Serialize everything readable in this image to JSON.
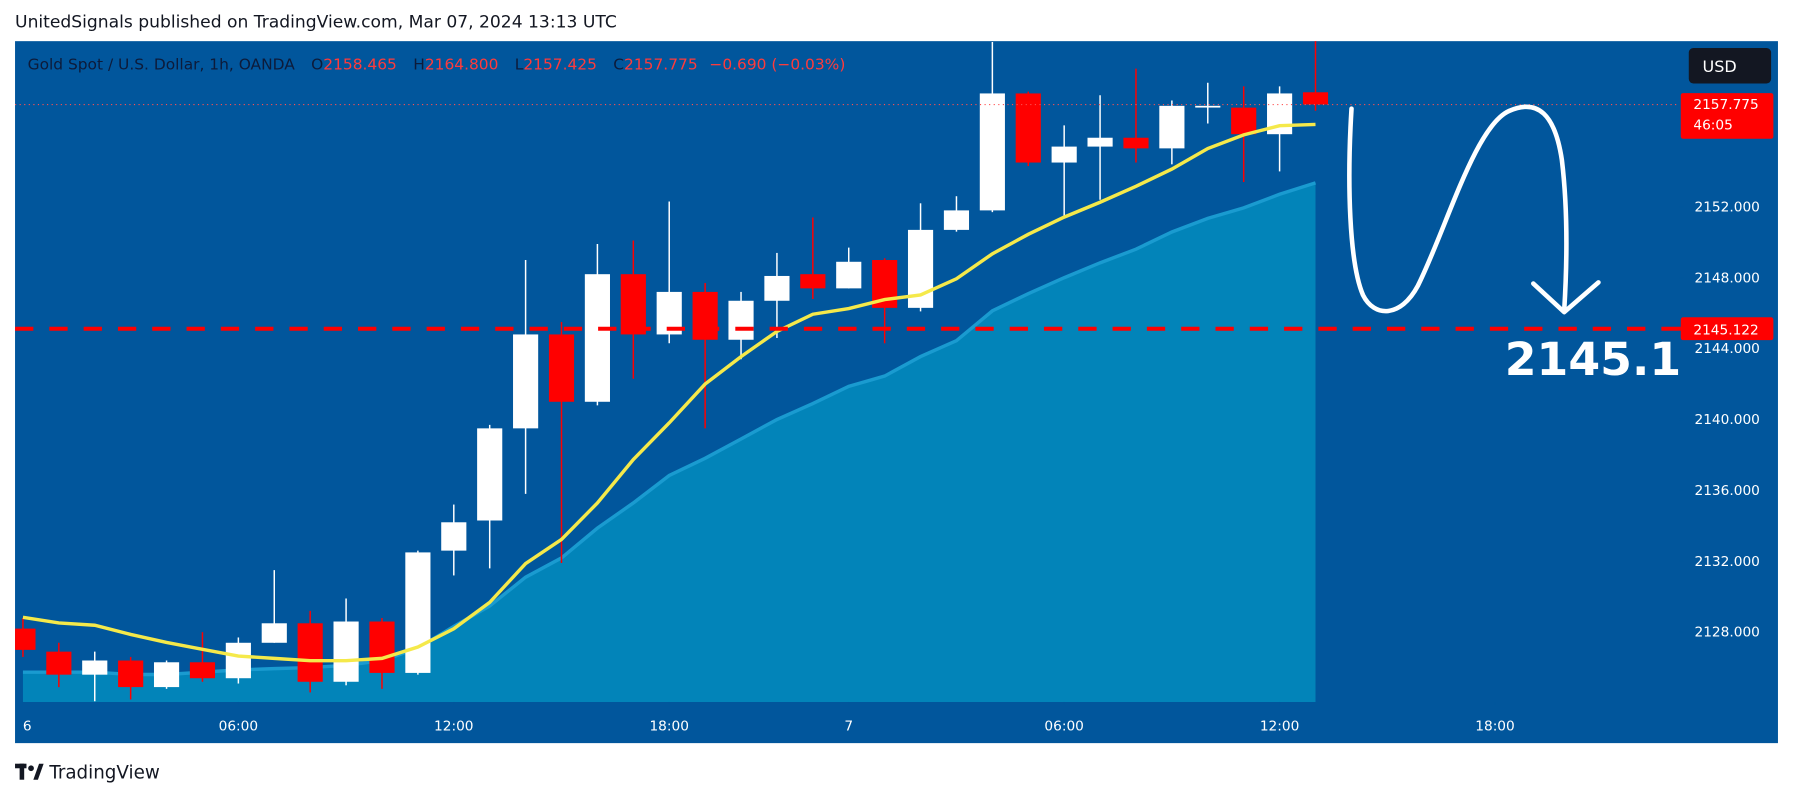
{
  "published": "UnitedSignals published on TradingView.com, Mar 07, 2024 13:13 UTC",
  "footer": "TradingView",
  "chart_data": {
    "type": "candlestick",
    "header": {
      "symbol": "Gold Spot / U.S. Dollar, 1h, OANDA",
      "o_label": "O",
      "open": "2158.465",
      "h_label": "H",
      "high": "2164.800",
      "l_label": "L",
      "low": "2157.425",
      "c_label": "C",
      "close": "2157.775",
      "change": "−0.690 (−0.03%)"
    },
    "currency": "USD",
    "countdown": "46:05",
    "annotation": "2145.1",
    "up_color": "#ffffff",
    "down_color": "#ff0000",
    "open": [
      2128.2,
      2126.9,
      2125.6,
      2126.4,
      2124.9,
      2126.3,
      2125.4,
      2127.4,
      2128.5,
      2125.2,
      2128.6,
      2125.7,
      2132.6,
      2134.3,
      2139.5,
      2144.8,
      2141.0,
      2148.2,
      2144.8,
      2147.2,
      2144.5,
      2146.7,
      2148.2,
      2147.4,
      2149.0,
      2146.3,
      2150.7,
      2151.8,
      2158.4,
      2154.5,
      2155.4,
      2155.9,
      2155.3,
      2157.7,
      2157.6,
      2156.1,
      2158.465
    ],
    "high": [
      2128.8,
      2127.4,
      2126.9,
      2126.6,
      2126.4,
      2128.0,
      2127.7,
      2131.5,
      2129.2,
      2129.9,
      2128.8,
      2132.6,
      2135.2,
      2139.7,
      2149.0,
      2145.5,
      2149.9,
      2150.1,
      2152.3,
      2147.7,
      2147.2,
      2149.4,
      2151.4,
      2149.7,
      2149.1,
      2152.2,
      2152.6,
      2161.3,
      2158.5,
      2156.6,
      2158.3,
      2159.8,
      2158.0,
      2159.0,
      2158.8,
      2158.8,
      2164.8
    ],
    "low": [
      2126.6,
      2124.9,
      2124.1,
      2124.2,
      2124.8,
      2125.2,
      2125.1,
      2127.4,
      2124.6,
      2125.0,
      2124.8,
      2125.6,
      2131.2,
      2131.6,
      2135.8,
      2131.9,
      2140.8,
      2142.3,
      2144.3,
      2139.5,
      2143.4,
      2144.6,
      2146.8,
      2147.4,
      2144.3,
      2146.1,
      2150.6,
      2151.7,
      2154.3,
      2151.5,
      2152.4,
      2154.5,
      2154.4,
      2156.7,
      2153.4,
      2154.0,
      2157.425
    ],
    "close": [
      2127.0,
      2125.6,
      2126.4,
      2124.9,
      2126.3,
      2125.4,
      2127.4,
      2128.5,
      2125.2,
      2128.6,
      2125.7,
      2132.5,
      2134.2,
      2139.5,
      2144.8,
      2141.0,
      2148.2,
      2144.8,
      2147.2,
      2144.5,
      2146.7,
      2148.1,
      2147.4,
      2148.9,
      2146.3,
      2150.7,
      2151.8,
      2158.4,
      2154.5,
      2155.4,
      2155.9,
      2155.3,
      2157.7,
      2157.7,
      2156.1,
      2158.4,
      2157.775
    ],
    "series": [
      {
        "style": "area",
        "color": "#0284b9",
        "values": [
          2125.74,
          2125.74,
          2125.74,
          2125.61,
          2125.61,
          2125.74,
          2125.87,
          2125.94,
          2126.0,
          2126.13,
          2126.39,
          2127.1,
          2128.32,
          2129.48,
          2131.1,
          2132.19,
          2133.87,
          2135.29,
          2136.84,
          2137.81,
          2138.9,
          2140.0,
          2140.9,
          2141.87,
          2142.45,
          2143.55,
          2144.45,
          2146.13,
          2147.1,
          2148.0,
          2148.84,
          2149.61,
          2150.58,
          2151.35,
          2151.94,
          2152.71,
          2153.35
        ]
      },
      {
        "style": "line",
        "color": "#f5e94a",
        "values": [
          2128.84,
          2128.52,
          2128.39,
          2127.87,
          2127.42,
          2127.03,
          2126.65,
          2126.52,
          2126.39,
          2126.39,
          2126.52,
          2127.16,
          2128.19,
          2129.68,
          2131.87,
          2133.23,
          2135.29,
          2137.74,
          2139.81,
          2142.0,
          2143.55,
          2144.97,
          2145.94,
          2146.26,
          2146.77,
          2147.03,
          2147.94,
          2149.35,
          2150.45,
          2151.42,
          2152.26,
          2153.16,
          2154.13,
          2155.29,
          2156.06,
          2156.58,
          2156.65
        ]
      }
    ],
    "hline": {
      "value": 2145.122,
      "color": "#ff0000"
    },
    "ylim": [
      2124.06,
      2161.35
    ],
    "yticks": [
      {
        "value": 2128,
        "label": "2128.000"
      },
      {
        "value": 2132,
        "label": "2132.000"
      },
      {
        "value": 2136,
        "label": "2136.000"
      },
      {
        "value": 2140,
        "label": "2140.000"
      },
      {
        "value": 2144,
        "label": "2144.000"
      },
      {
        "value": 2148,
        "label": "2148.000"
      },
      {
        "value": 2152,
        "label": "2152.000"
      }
    ],
    "xlim": [
      -0.22,
      46.11
    ],
    "xticks": [
      {
        "value": 0,
        "label": "6"
      },
      {
        "value": 6,
        "label": "06:00"
      },
      {
        "value": 12,
        "label": "12:00"
      },
      {
        "value": 18,
        "label": "18:00"
      },
      {
        "value": 23,
        "label": "7"
      },
      {
        "value": 29,
        "label": "06:00"
      },
      {
        "value": 35,
        "label": "12:00"
      },
      {
        "value": 41,
        "label": "18:00"
      }
    ]
  }
}
